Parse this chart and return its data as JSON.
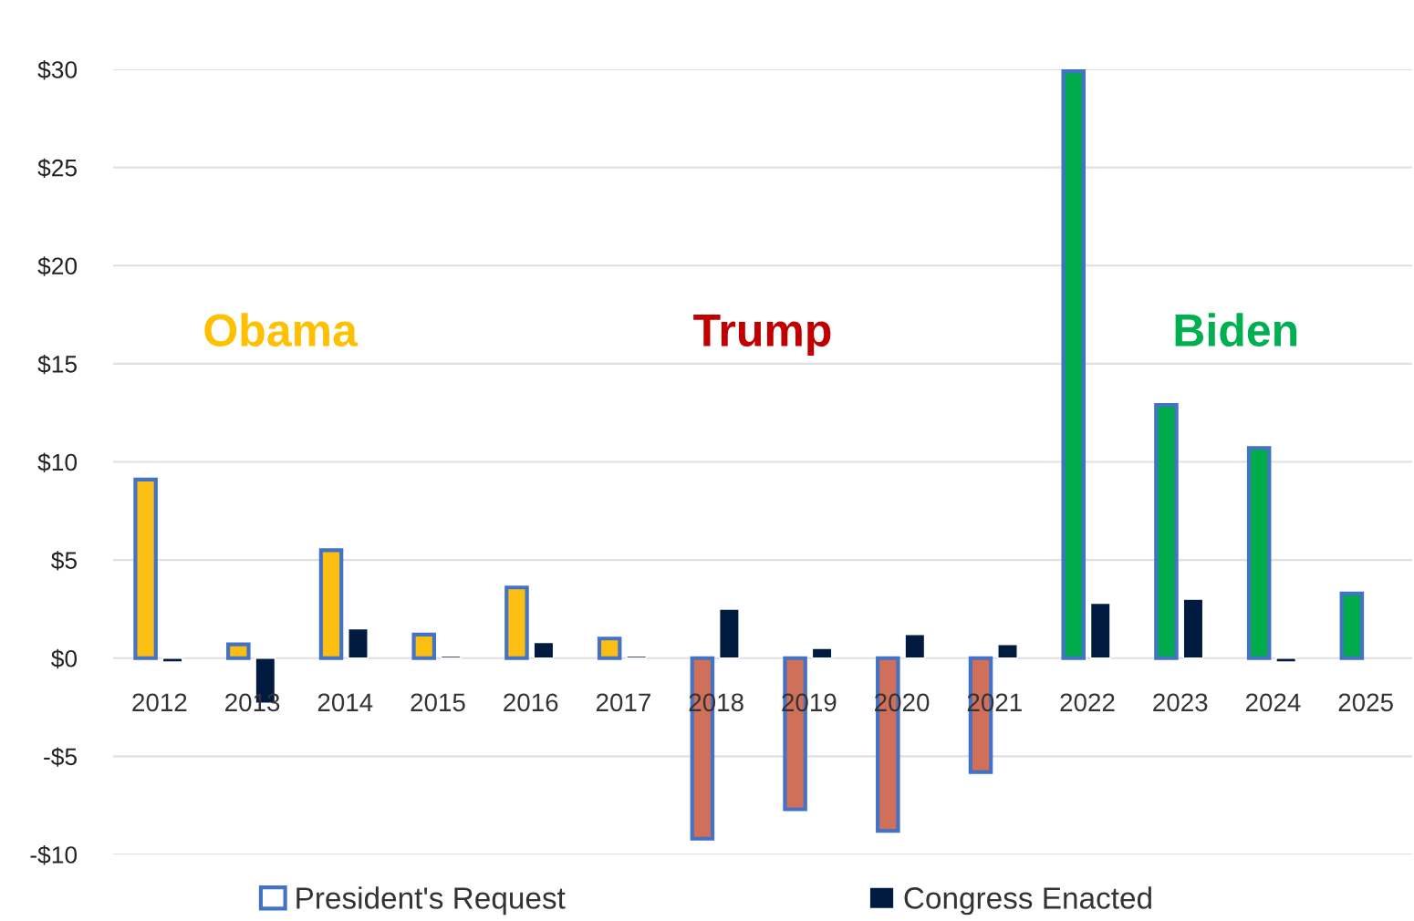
{
  "chart_data": {
    "type": "bar",
    "categories": [
      "2012",
      "2013",
      "2014",
      "2015",
      "2016",
      "2017",
      "2018",
      "2019",
      "2020",
      "2021",
      "2022",
      "2023",
      "2024",
      "2025"
    ],
    "series": [
      {
        "name": "President's Request",
        "color": "#4472c4",
        "colors": [
          "#fbbf14",
          "#fbbf14",
          "#fbbf14",
          "#fbbf14",
          "#fbbf14",
          "#fbbf14",
          "#d0705a",
          "#d0705a",
          "#d0705a",
          "#d0705a",
          "#00ab4b",
          "#00ab4b",
          "#00ab4b",
          "#00ab4b"
        ],
        "values": [
          9.1,
          0.7,
          5.5,
          1.2,
          3.6,
          1.0,
          -9.2,
          -7.7,
          -8.8,
          -5.8,
          29.9,
          12.9,
          10.7,
          3.3
        ]
      },
      {
        "name": "Congress Enacted",
        "color": "#001a40",
        "values": [
          -0.2,
          -2.3,
          1.5,
          0.1,
          0.8,
          0.1,
          2.5,
          0.5,
          1.2,
          0.7,
          2.8,
          3.0,
          -0.2,
          null
        ]
      }
    ],
    "annotations": [
      "Obama",
      "Trump",
      "Biden"
    ],
    "ylim": [
      -10,
      30
    ],
    "yticks": [
      {
        "value": -10,
        "label": "-$10"
      },
      {
        "value": -5,
        "label": "-$5"
      },
      {
        "value": 0,
        "label": "$0"
      },
      {
        "value": 5,
        "label": "$5"
      },
      {
        "value": 10,
        "label": "$10"
      },
      {
        "value": 15,
        "label": "$15"
      },
      {
        "value": 20,
        "label": "$20"
      },
      {
        "value": 25,
        "label": "$25"
      },
      {
        "value": 30,
        "label": "$30"
      }
    ],
    "grid": "y",
    "legend": "bottom"
  }
}
